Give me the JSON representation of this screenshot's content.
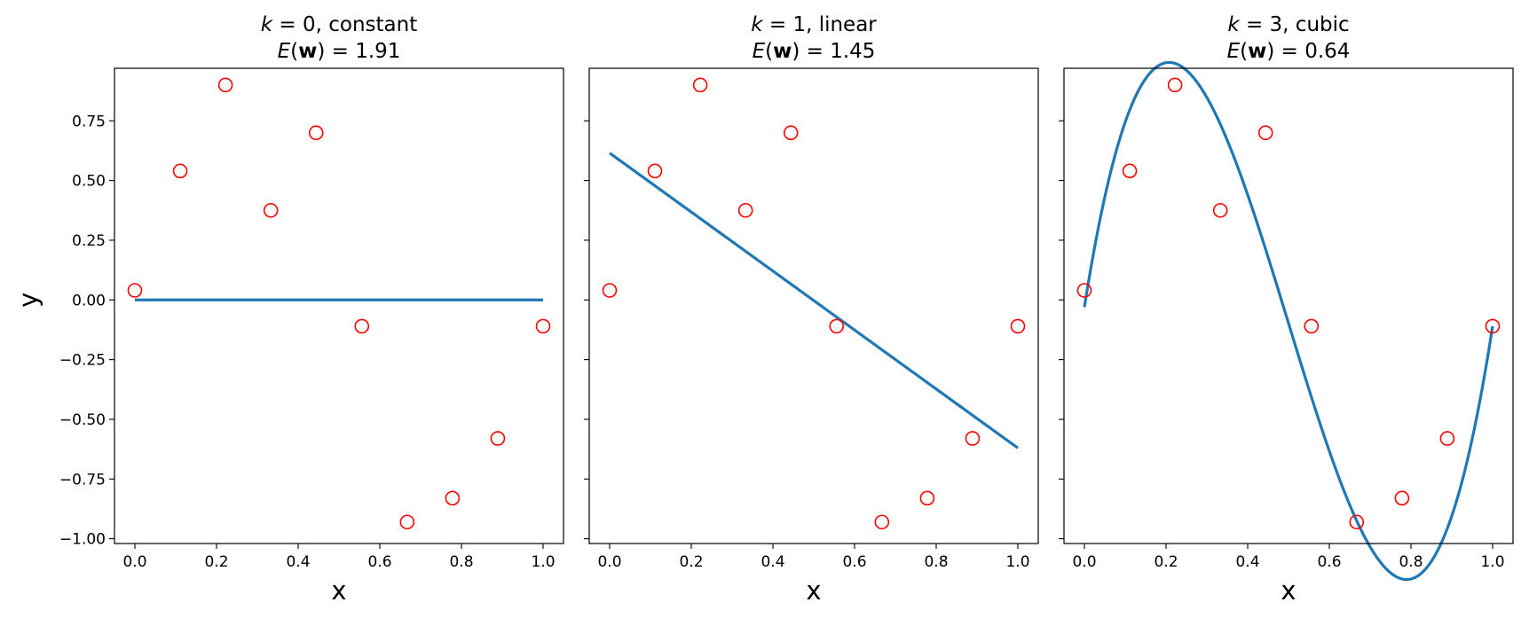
{
  "colors": {
    "fit_line": "#1f77b4",
    "markers": "#ff0000",
    "axes": "#000000",
    "background": "#ffffff"
  },
  "shared": {
    "xlim": [
      -0.05,
      1.05
    ],
    "ylim": [
      -1.02,
      0.97
    ],
    "xticks": [
      0.0,
      0.2,
      0.4,
      0.6,
      0.8,
      1.0
    ],
    "xtick_labels": [
      "0.0",
      "0.2",
      "0.4",
      "0.6",
      "0.8",
      "1.0"
    ],
    "yticks": [
      0.75,
      0.5,
      0.25,
      0.0,
      -0.25,
      -0.5,
      -0.75,
      -1.0
    ],
    "ytick_labels": [
      "0.75",
      "0.50",
      "0.25",
      "0.00",
      "−0.25",
      "−0.50",
      "−0.75",
      "−1.00"
    ],
    "xlabel": "x",
    "ylabel": "y",
    "sharey": true,
    "grid": false
  },
  "chart_data": [
    {
      "type": "line+scatter",
      "title_k": "k",
      "title_rest": " = 0, constant",
      "error_E": "E",
      "error_w": "w",
      "error_value": "1.91",
      "degree": 0,
      "x": [
        0.0,
        0.111,
        0.222,
        0.333,
        0.444,
        0.556,
        0.667,
        0.778,
        0.889,
        1.0
      ],
      "y": [
        0.04,
        0.54,
        0.9,
        0.375,
        0.7,
        -0.11,
        -0.93,
        -0.83,
        -0.58,
        -0.11
      ],
      "fit_coefficients": [
        0.0
      ]
    },
    {
      "type": "line+scatter",
      "title_k": "k",
      "title_rest": " = 1, linear",
      "error_E": "E",
      "error_w": "w",
      "error_value": "1.45",
      "degree": 1,
      "x": [
        0.0,
        0.111,
        0.222,
        0.333,
        0.444,
        0.556,
        0.667,
        0.778,
        0.889,
        1.0
      ],
      "y": [
        0.04,
        0.54,
        0.9,
        0.375,
        0.7,
        -0.11,
        -0.93,
        -0.83,
        -0.58,
        -0.11
      ],
      "fit_coefficients": [
        0.615,
        -1.235
      ]
    },
    {
      "type": "line+scatter",
      "title_k": "k",
      "title_rest": " = 3, cubic",
      "error_E": "E",
      "error_w": "w",
      "error_value": "0.64",
      "degree": 3,
      "x": [
        0.0,
        0.111,
        0.222,
        0.333,
        0.444,
        0.556,
        0.667,
        0.778,
        0.889,
        1.0
      ],
      "y": [
        0.04,
        0.54,
        0.9,
        0.375,
        0.7,
        -0.11,
        -0.93,
        -0.83,
        -0.58,
        -0.11
      ],
      "fit_coefficients": [
        -0.03,
        10.82,
        -32.92,
        22.02
      ]
    }
  ]
}
